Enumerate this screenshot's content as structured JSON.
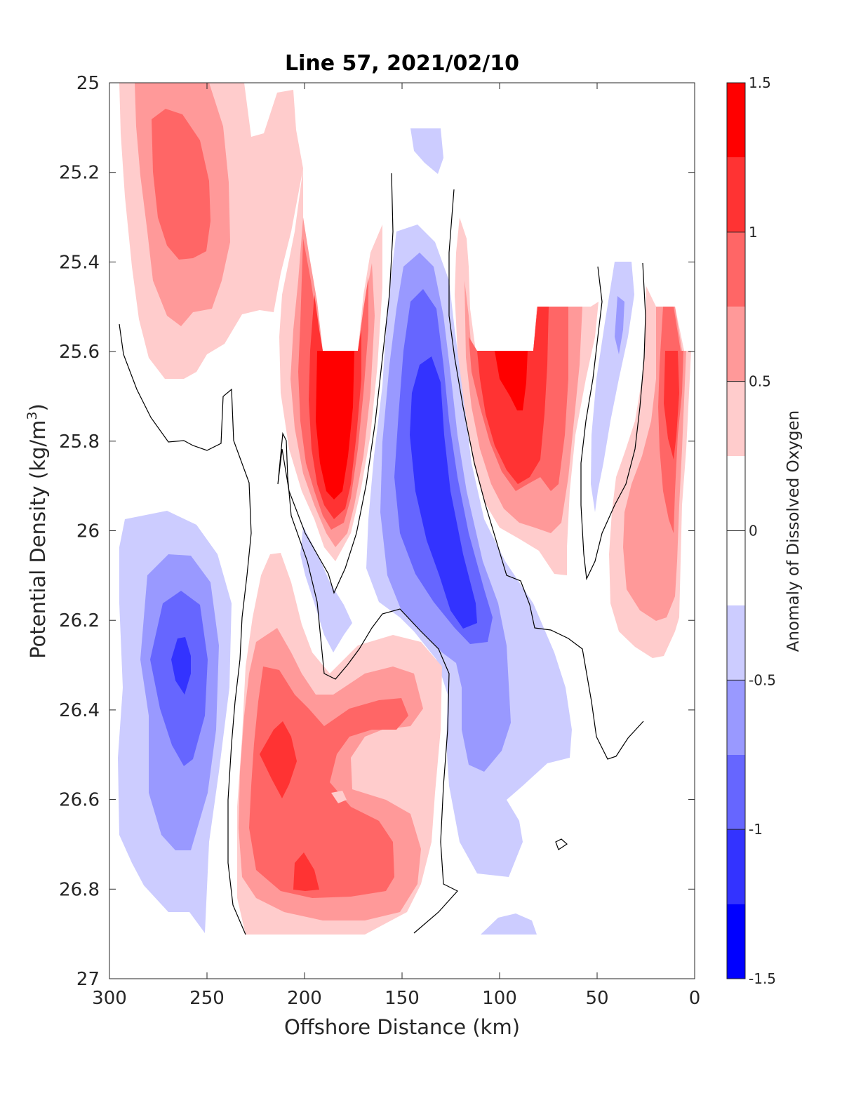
{
  "chart_data": {
    "type": "heatmap",
    "title": "Line 57, 2021/02/10",
    "xlabel": "Offshore Distance (km)",
    "ylabel": "Potential Density (kg/m",
    "ylabel_sup": "3",
    "ylabel_tail": ")",
    "colorbar_label": "Anomaly of Dissolved Oxygen",
    "x_reversed": true,
    "y_reversed": true,
    "xlim": [
      0,
      300
    ],
    "ylim": [
      25,
      27
    ],
    "xticks": [
      300,
      250,
      200,
      150,
      100,
      50,
      0
    ],
    "xtick_labels": [
      "300",
      "250",
      "200",
      "150",
      "100",
      "50",
      "0"
    ],
    "yticks": [
      25,
      25.2,
      25.4,
      25.6,
      25.8,
      26,
      26.2,
      26.4,
      26.6,
      26.8,
      27
    ],
    "ytick_labels": [
      "25",
      "25.2",
      "25.4",
      "25.6",
      "25.8",
      "26",
      "26.2",
      "26.4",
      "26.6",
      "26.8",
      "27"
    ],
    "colorbar": {
      "range": [
        -1.5,
        1.5
      ],
      "ticks": [
        1.5,
        1,
        0.5,
        0,
        -0.5,
        -1,
        -1.5
      ],
      "tick_labels": [
        "1.5",
        "1",
        "0.5",
        "0",
        "-0.5",
        "-1",
        "-1.5"
      ],
      "levels": [
        {
          "lo": 1.25,
          "hi": 1.5,
          "color": "#ff0000"
        },
        {
          "lo": 1.0,
          "hi": 1.25,
          "color": "#ff3333"
        },
        {
          "lo": 0.75,
          "hi": 1.0,
          "color": "#ff6666"
        },
        {
          "lo": 0.5,
          "hi": 0.75,
          "color": "#ff9999"
        },
        {
          "lo": 0.25,
          "hi": 0.5,
          "color": "#ffcccc"
        },
        {
          "lo": -0.25,
          "hi": 0.25,
          "color": "#ffffff"
        },
        {
          "lo": -0.5,
          "hi": -0.25,
          "color": "#ccccff"
        },
        {
          "lo": -0.75,
          "hi": -0.5,
          "color": "#9999ff"
        },
        {
          "lo": -1.0,
          "hi": -0.75,
          "color": "#6666ff"
        },
        {
          "lo": -1.25,
          "hi": -1.0,
          "color": "#3333ff"
        },
        {
          "lo": -1.5,
          "hi": -1.25,
          "color": "#0000ff"
        }
      ]
    },
    "features": [
      {
        "name": "surface positive anomaly",
        "x": 265,
        "y": 25.22,
        "value": 0.9
      },
      {
        "name": "positive core",
        "x": 185,
        "y": 25.75,
        "value": 1.4
      },
      {
        "name": "negative core",
        "x": 130,
        "y": 25.85,
        "value": -1.2
      },
      {
        "name": "positive anomaly",
        "x": 95,
        "y": 25.7,
        "value": 1.3
      },
      {
        "name": "offshore negative anomaly",
        "x": 263,
        "y": 26.3,
        "value": -1.1
      },
      {
        "name": "deep positive anomaly",
        "x": 210,
        "y": 26.5,
        "value": 1.1
      },
      {
        "name": "deep positive anomaly",
        "x": 205,
        "y": 26.77,
        "value": 1.1
      },
      {
        "name": "near-shore positive anomaly",
        "x": 10,
        "y": 25.65,
        "value": 1.3
      },
      {
        "name": "near-shore negative anomaly",
        "x": 40,
        "y": 25.6,
        "value": -0.6
      }
    ]
  }
}
